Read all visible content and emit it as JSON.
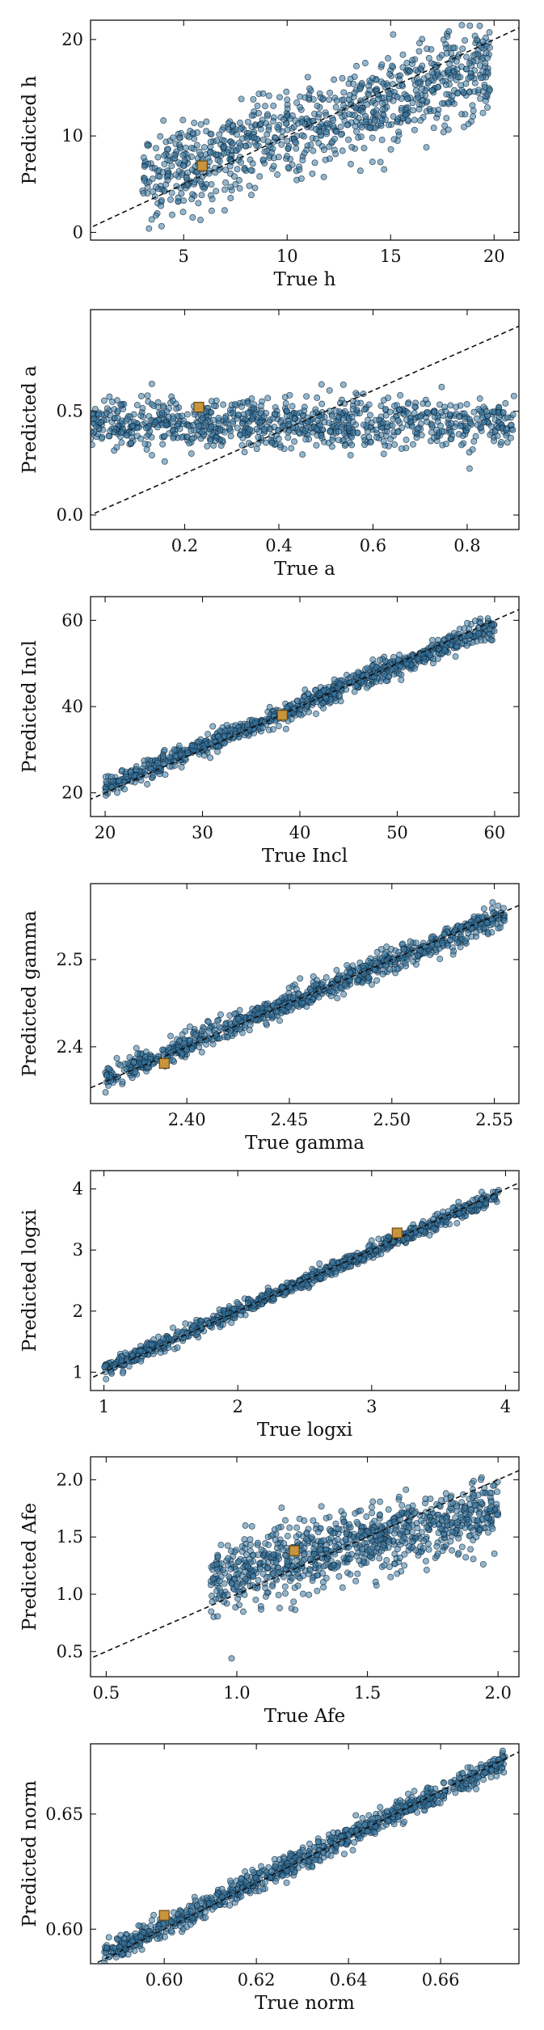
{
  "chart_data": [
    {
      "type": "scatter",
      "param": "h",
      "xlabel": "True h",
      "ylabel": "Predicted h",
      "xlim": [
        0.5,
        21.2
      ],
      "ylim": [
        -0.8,
        22.0
      ],
      "xticks": [
        5,
        10,
        15,
        20
      ],
      "yticks": [
        0,
        10,
        20
      ],
      "tick_decimals": 0,
      "ref_line": "y = x",
      "series": [
        {
          "name": "predictions",
          "x_range": [
            3.0,
            19.8
          ],
          "scatter_sd": 2.4,
          "trend": [
            [
              3.0,
              5.5
            ],
            [
              10.0,
              10.0
            ],
            [
              19.8,
              17.3
            ]
          ]
        }
      ],
      "highlight": {
        "x": 5.9,
        "y": 6.9,
        "marker": "square",
        "color": "#c8943d"
      }
    },
    {
      "type": "scatter",
      "param": "a",
      "xlabel": "True a",
      "ylabel": "Predicted a",
      "xlim": [
        0.0,
        0.91
      ],
      "ylim": [
        -0.07,
        0.99
      ],
      "xticks": [
        0.2,
        0.4,
        0.6,
        0.8
      ],
      "yticks": [
        0.0,
        0.5
      ],
      "tick_decimals": 1,
      "ref_line": "y = x",
      "series": [
        {
          "name": "predictions",
          "x_range": [
            0.0,
            0.9
          ],
          "scatter_sd": 0.06,
          "trend": [
            [
              0.0,
              0.44
            ],
            [
              0.9,
              0.44
            ]
          ]
        }
      ],
      "highlight": {
        "x": 0.23,
        "y": 0.52,
        "marker": "square",
        "color": "#c8943d"
      }
    },
    {
      "type": "scatter",
      "param": "Incl",
      "xlabel": "True Incl",
      "ylabel": "Predicted Incl",
      "xlim": [
        18.5,
        62.5
      ],
      "ylim": [
        14.5,
        65.5
      ],
      "xticks": [
        20,
        30,
        40,
        50,
        60
      ],
      "yticks": [
        20,
        40,
        60
      ],
      "tick_decimals": 0,
      "ref_line": "y = x",
      "series": [
        {
          "name": "predictions",
          "x_range": [
            20.0,
            60.0
          ],
          "scatter_sd": 1.2,
          "trend": [
            [
              20.0,
              21.5
            ],
            [
              40.0,
              40.2
            ],
            [
              60.0,
              58.5
            ]
          ]
        }
      ],
      "highlight": {
        "x": 38.2,
        "y": 38.0,
        "marker": "square",
        "color": "#c8943d"
      }
    },
    {
      "type": "scatter",
      "param": "gamma",
      "xlabel": "True gamma",
      "ylabel": "Predicted gamma",
      "xlim": [
        2.353,
        2.562
      ],
      "ylim": [
        2.335,
        2.587
      ],
      "xticks": [
        2.4,
        2.45,
        2.5,
        2.55
      ],
      "yticks": [
        2.4,
        2.5
      ],
      "tick_decimals": 2,
      "ytick_decimals": 1,
      "ref_line": "y = x",
      "series": [
        {
          "name": "predictions",
          "x_range": [
            2.36,
            2.555
          ],
          "scatter_sd": 0.007,
          "trend": [
            [
              2.36,
              2.364
            ],
            [
              2.555,
              2.551
            ]
          ]
        }
      ],
      "highlight": {
        "x": 2.389,
        "y": 2.381,
        "marker": "square",
        "color": "#c8943d"
      }
    },
    {
      "type": "scatter",
      "param": "logxi",
      "xlabel": "True logxi",
      "ylabel": "Predicted logxi",
      "xlim": [
        0.9,
        4.1
      ],
      "ylim": [
        0.7,
        4.3
      ],
      "xticks": [
        1,
        2,
        3,
        4
      ],
      "yticks": [
        1,
        2,
        3,
        4
      ],
      "tick_decimals": 0,
      "ref_line": "y = x",
      "series": [
        {
          "name": "predictions",
          "x_range": [
            1.0,
            3.95
          ],
          "scatter_sd": 0.06,
          "trend": [
            [
              1.0,
              1.05
            ],
            [
              3.95,
              3.9
            ]
          ]
        }
      ],
      "highlight": {
        "x": 3.19,
        "y": 3.28,
        "marker": "square",
        "color": "#c8943d"
      }
    },
    {
      "type": "scatter",
      "param": "Afe",
      "xlabel": "True Afe",
      "ylabel": "Predicted Afe",
      "xlim": [
        0.44,
        2.08
      ],
      "ylim": [
        0.28,
        2.2
      ],
      "xticks": [
        0.5,
        1.0,
        1.5,
        2.0
      ],
      "yticks": [
        0.5,
        1.0,
        1.5,
        2.0
      ],
      "tick_decimals": 1,
      "ref_line": "y = x",
      "series": [
        {
          "name": "predictions",
          "x_range": [
            0.9,
            2.0
          ],
          "scatter_sd": 0.15,
          "trend": [
            [
              0.9,
              1.15
            ],
            [
              1.5,
              1.45
            ],
            [
              2.0,
              1.75
            ]
          ]
        }
      ],
      "outliers": [
        [
          0.98,
          0.44
        ]
      ],
      "highlight": {
        "x": 1.22,
        "y": 1.38,
        "marker": "square",
        "color": "#c8943d"
      }
    },
    {
      "type": "scatter",
      "param": "norm",
      "xlabel": "True norm",
      "ylabel": "Predicted norm",
      "xlim": [
        0.584,
        0.677
      ],
      "ylim": [
        0.585,
        0.6805
      ],
      "xticks": [
        0.6,
        0.62,
        0.64,
        0.66
      ],
      "yticks": [
        0.6,
        0.65
      ],
      "tick_decimals": 2,
      "ref_line": "y = x",
      "series": [
        {
          "name": "predictions",
          "x_range": [
            0.587,
            0.674
          ],
          "scatter_sd": 0.0025,
          "trend": [
            [
              0.587,
              0.589
            ],
            [
              0.674,
              0.673
            ]
          ]
        }
      ],
      "highlight": {
        "x": 0.6,
        "y": 0.606,
        "marker": "square",
        "color": "#c8943d"
      }
    }
  ]
}
